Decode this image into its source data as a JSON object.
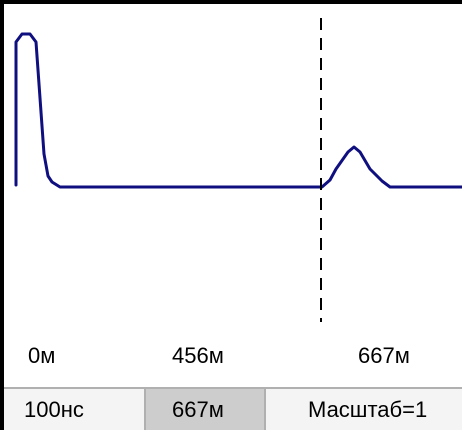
{
  "axis": {
    "start_label": "0м",
    "mid_label": "456м",
    "cursor_label": "667м"
  },
  "status": {
    "pulse_width": "100нс",
    "cursor_distance": "667м",
    "scale": "Масштаб=1"
  },
  "colors": {
    "trace": "#0f0f80",
    "cursor": "#000000",
    "status_background": "#f4f4f4",
    "status_active": "#cdcdcd",
    "divider": "#b0b0b0"
  }
}
